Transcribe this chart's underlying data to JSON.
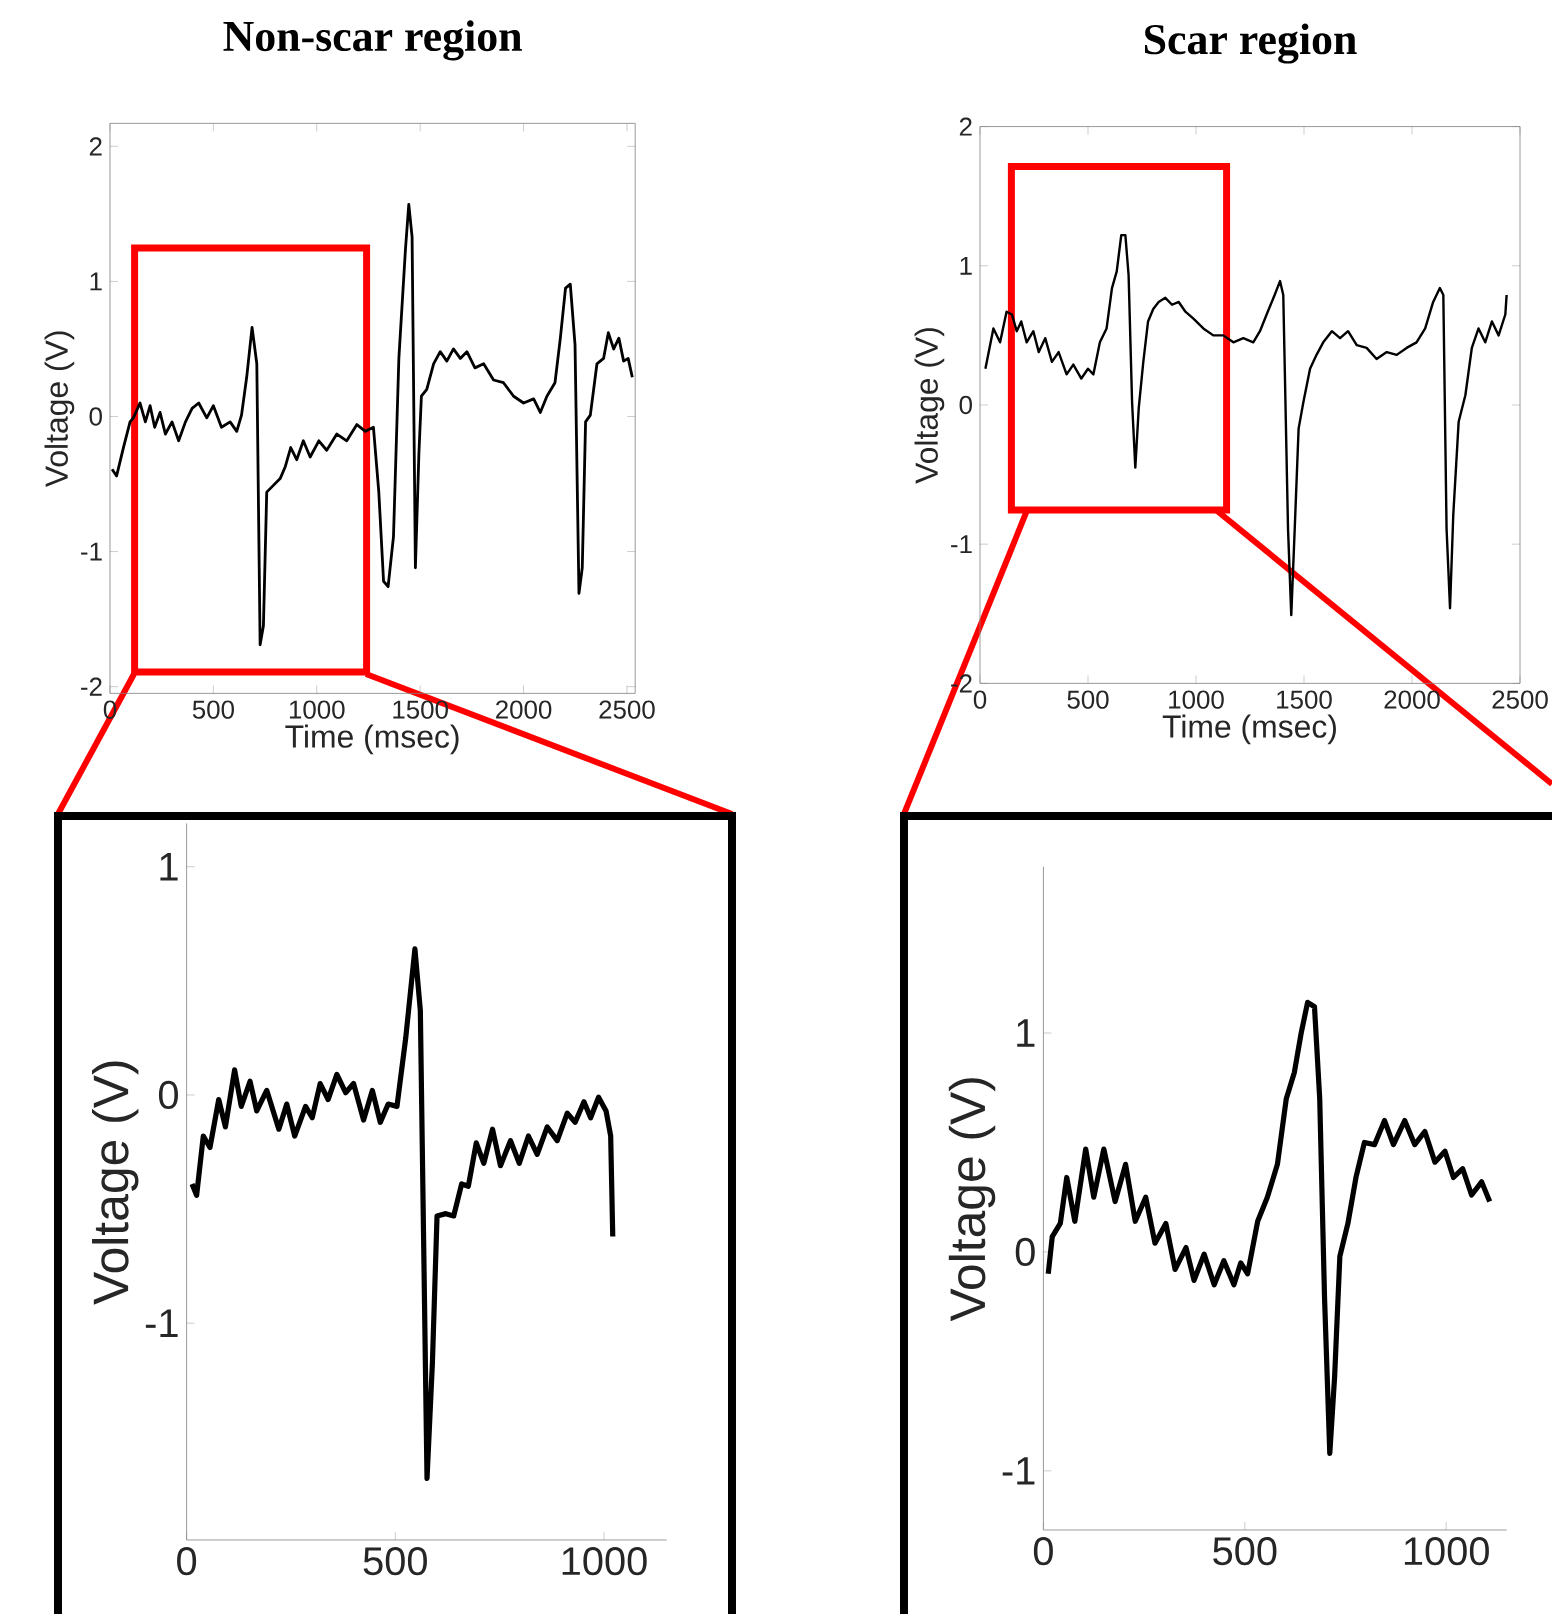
{
  "chart_data": [
    {
      "type": "line",
      "title": "Non-scar region",
      "xlabel": "Time (msec)",
      "ylabel": "Voltage (V)",
      "color": "#000000",
      "xlim": [
        0,
        2540
      ],
      "ylim": [
        -2.05,
        2.17
      ],
      "xticks": [
        0,
        500,
        1000,
        1500,
        2000,
        2500
      ],
      "yticks": [
        -2,
        -1,
        0,
        1,
        2
      ],
      "x": [
        10,
        32,
        65,
        97,
        113,
        145,
        171,
        194,
        216,
        242,
        268,
        300,
        332,
        365,
        397,
        429,
        468,
        500,
        539,
        581,
        613,
        636,
        661,
        687,
        710,
        726,
        742,
        758,
        790,
        823,
        848,
        874,
        903,
        935,
        968,
        1010,
        1048,
        1097,
        1145,
        1194,
        1235,
        1274,
        1300,
        1323,
        1345,
        1371,
        1397,
        1429,
        1445,
        1461,
        1477,
        1494,
        1506,
        1532,
        1565,
        1597,
        1629,
        1661,
        1694,
        1726,
        1765,
        1807,
        1855,
        1903,
        1952,
        2000,
        2049,
        2081,
        2113,
        2152,
        2178,
        2203,
        2226,
        2249,
        2268,
        2284,
        2300,
        2323,
        2355,
        2387,
        2410,
        2436,
        2461,
        2484,
        2506,
        2526
      ],
      "values": [
        -0.39,
        -0.44,
        -0.23,
        -0.04,
        -0.01,
        0.1,
        -0.04,
        0.08,
        -0.08,
        0.03,
        -0.13,
        -0.04,
        -0.18,
        -0.04,
        0.06,
        0.1,
        -0.01,
        0.08,
        -0.08,
        -0.04,
        -0.11,
        0.01,
        0.29,
        0.66,
        0.39,
        -1.69,
        -1.55,
        -0.56,
        -0.51,
        -0.46,
        -0.37,
        -0.23,
        -0.32,
        -0.18,
        -0.3,
        -0.18,
        -0.25,
        -0.13,
        -0.18,
        -0.06,
        -0.11,
        -0.08,
        -0.56,
        -1.22,
        -1.26,
        -0.89,
        0.43,
        1.24,
        1.57,
        1.33,
        -1.12,
        -0.27,
        0.15,
        0.2,
        0.39,
        0.48,
        0.41,
        0.5,
        0.43,
        0.48,
        0.36,
        0.39,
        0.27,
        0.25,
        0.15,
        0.1,
        0.13,
        0.03,
        0.15,
        0.25,
        0.58,
        0.95,
        0.98,
        0.53,
        -1.31,
        -1.12,
        -0.04,
        0.01,
        0.39,
        0.43,
        0.62,
        0.5,
        0.58,
        0.41,
        0.43,
        0.29
      ]
    },
    {
      "type": "line",
      "title": "Scar region",
      "xlabel": "Time (msec)",
      "ylabel": "Voltage (V)",
      "color": "#000000",
      "xlim": [
        0,
        2500
      ],
      "ylim": [
        -2,
        2
      ],
      "xticks": [
        0,
        500,
        1000,
        1500,
        2000,
        2500
      ],
      "yticks": [
        -2,
        -1,
        0,
        1,
        2
      ],
      "x": [
        25,
        62,
        93,
        123,
        148,
        170,
        191,
        216,
        247,
        272,
        302,
        333,
        364,
        401,
        432,
        469,
        500,
        525,
        555,
        586,
        611,
        633,
        654,
        673,
        688,
        704,
        719,
        735,
        756,
        778,
        802,
        827,
        858,
        889,
        920,
        951,
        988,
        1034,
        1080,
        1126,
        1173,
        1219,
        1265,
        1296,
        1327,
        1364,
        1389,
        1404,
        1426,
        1441,
        1457,
        1475,
        1497,
        1528,
        1558,
        1589,
        1629,
        1667,
        1704,
        1744,
        1790,
        1836,
        1883,
        1929,
        1975,
        2021,
        2061,
        2098,
        2129,
        2145,
        2160,
        2176,
        2191,
        2216,
        2247,
        2277,
        2308,
        2339,
        2370,
        2401,
        2432,
        2438
      ],
      "values": [
        0.26,
        0.55,
        0.45,
        0.67,
        0.65,
        0.53,
        0.6,
        0.45,
        0.53,
        0.38,
        0.48,
        0.31,
        0.38,
        0.22,
        0.29,
        0.19,
        0.26,
        0.22,
        0.45,
        0.55,
        0.84,
        0.96,
        1.22,
        1.22,
        0.93,
        0.02,
        -0.45,
        -0.02,
        0.31,
        0.6,
        0.69,
        0.74,
        0.77,
        0.72,
        0.74,
        0.67,
        0.62,
        0.55,
        0.5,
        0.5,
        0.45,
        0.48,
        0.45,
        0.53,
        0.65,
        0.79,
        0.89,
        0.79,
        -0.89,
        -1.51,
        -0.89,
        -0.17,
        0.02,
        0.26,
        0.36,
        0.45,
        0.53,
        0.48,
        0.53,
        0.43,
        0.41,
        0.33,
        0.38,
        0.36,
        0.41,
        0.45,
        0.55,
        0.74,
        0.84,
        0.79,
        -0.89,
        -1.46,
        -0.79,
        -0.12,
        0.07,
        0.41,
        0.55,
        0.45,
        0.6,
        0.5,
        0.65,
        0.79
      ]
    },
    {
      "type": "line",
      "ylabel": "Voltage (V)",
      "color": "#000000",
      "xlim": [
        0,
        1150
      ],
      "ylim": [
        -1.95,
        1.19
      ],
      "xticks": [
        0,
        500,
        1000
      ],
      "yticks": [
        -1,
        0,
        1
      ],
      "x": [
        13,
        24,
        40,
        56,
        77,
        93,
        115,
        131,
        152,
        168,
        192,
        221,
        240,
        259,
        285,
        301,
        320,
        339,
        360,
        381,
        400,
        424,
        445,
        464,
        483,
        504,
        525,
        547,
        560,
        576,
        589,
        600,
        621,
        640,
        659,
        675,
        694,
        712,
        733,
        752,
        776,
        797,
        819,
        840,
        864,
        888,
        912,
        931,
        952,
        968,
        987,
        1005,
        1016,
        1021
      ],
      "values": [
        -0.39,
        -0.44,
        -0.18,
        -0.23,
        -0.02,
        -0.14,
        0.11,
        -0.05,
        0.06,
        -0.07,
        0.02,
        -0.15,
        -0.04,
        -0.18,
        -0.05,
        -0.1,
        0.05,
        -0.02,
        0.09,
        0.01,
        0.05,
        -0.11,
        0.02,
        -0.12,
        -0.04,
        -0.05,
        0.25,
        0.64,
        0.37,
        -1.68,
        -1.17,
        -0.53,
        -0.52,
        -0.53,
        -0.39,
        -0.4,
        -0.21,
        -0.3,
        -0.15,
        -0.31,
        -0.2,
        -0.3,
        -0.18,
        -0.26,
        -0.14,
        -0.2,
        -0.08,
        -0.12,
        -0.03,
        -0.1,
        -0.01,
        -0.07,
        -0.18,
        -0.62
      ]
    },
    {
      "type": "line",
      "ylabel": "Voltage (V)",
      "color": "#000000",
      "xlim": [
        0,
        1150
      ],
      "ylim": [
        -1.27,
        1.76
      ],
      "xticks": [
        0,
        500,
        1000
      ],
      "yticks": [
        -1,
        0,
        1
      ],
      "x": [
        12,
        22,
        42,
        58,
        78,
        105,
        125,
        150,
        178,
        204,
        228,
        254,
        277,
        304,
        327,
        354,
        374,
        399,
        424,
        448,
        473,
        490,
        507,
        532,
        556,
        581,
        603,
        623,
        640,
        656,
        673,
        686,
        698,
        711,
        723,
        736,
        756,
        776,
        797,
        822,
        847,
        869,
        897,
        922,
        947,
        972,
        997,
        1018,
        1041,
        1063,
        1088,
        1108
      ],
      "values": [
        -0.1,
        0.07,
        0.13,
        0.34,
        0.14,
        0.47,
        0.25,
        0.47,
        0.23,
        0.4,
        0.14,
        0.25,
        0.04,
        0.13,
        -0.08,
        0.02,
        -0.13,
        -0.01,
        -0.15,
        -0.04,
        -0.15,
        -0.05,
        -0.1,
        0.14,
        0.25,
        0.4,
        0.7,
        0.82,
        1.0,
        1.14,
        1.12,
        0.7,
        -0.21,
        -0.92,
        -0.57,
        -0.02,
        0.13,
        0.34,
        0.5,
        0.49,
        0.6,
        0.49,
        0.6,
        0.49,
        0.55,
        0.41,
        0.46,
        0.34,
        0.38,
        0.26,
        0.32,
        0.23
      ]
    }
  ]
}
